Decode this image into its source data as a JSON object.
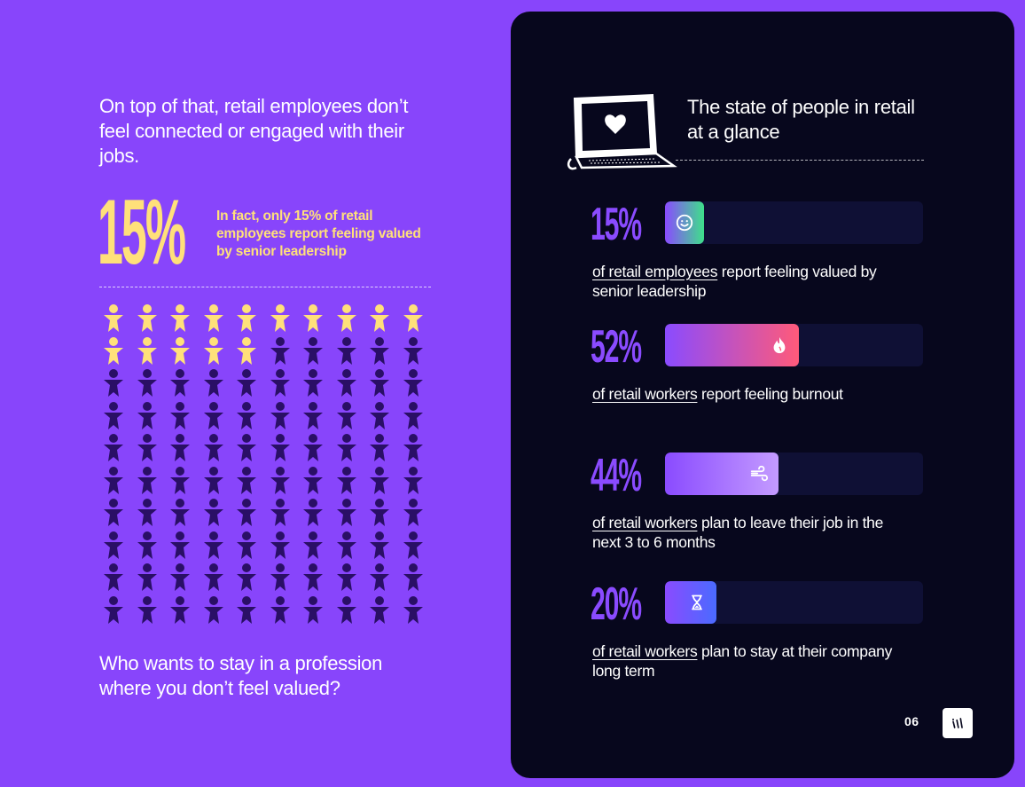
{
  "left": {
    "intro_text": "On top of that, retail employees don’t feel connected or engaged with their jobs.",
    "big_stat": "15%",
    "big_stat_text": "In fact, only 15% of retail employees report feeling valued by senior leadership",
    "people_grid": {
      "total": 100,
      "highlighted": 15,
      "highlight_color": "#ffe07a",
      "base_color": "#2a0f66"
    },
    "outro_text": "Who wants to stay in a profession where you don’t feel valued?"
  },
  "panel": {
    "title": "The state of people in retail at a glance",
    "stats": [
      {
        "pct": "15%",
        "value": 15,
        "link": "of retail employees",
        "rest": " report feeling valued by senior leadership",
        "icon": "smile-icon",
        "gradient": [
          "#8a4bff",
          "#3ee08a"
        ]
      },
      {
        "pct": "52%",
        "value": 52,
        "link": "of retail workers",
        "rest": " report feeling burnout",
        "icon": "flame-icon",
        "gradient": [
          "#8a4bff",
          "#ff5a7a"
        ]
      },
      {
        "pct": "44%",
        "value": 44,
        "link": "of retail workers",
        "rest": " plan to leave their job in the next 3 to 6 months",
        "icon": "wind-icon",
        "gradient": [
          "#8a4bff",
          "#c49bff"
        ]
      },
      {
        "pct": "20%",
        "value": 20,
        "link": "of retail workers",
        "rest": " plan to stay at their company long term",
        "icon": "hourglass-icon",
        "gradient": [
          "#8a4bff",
          "#4a6bff"
        ]
      }
    ],
    "page_number": "06"
  }
}
